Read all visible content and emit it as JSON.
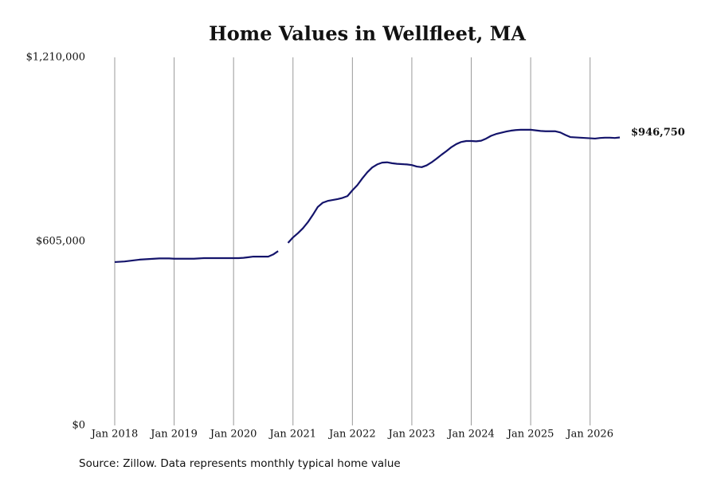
{
  "chart_data": {
    "type": "line",
    "title": "Home Values in Wellfleet, MA",
    "source": "Source: Zillow. Data represents monthly typical home value",
    "x": [
      "2018-01",
      "2018-02",
      "2018-03",
      "2018-04",
      "2018-05",
      "2018-06",
      "2018-07",
      "2018-08",
      "2018-09",
      "2018-10",
      "2018-11",
      "2018-12",
      "2019-01",
      "2019-02",
      "2019-03",
      "2019-04",
      "2019-05",
      "2019-06",
      "2019-07",
      "2019-08",
      "2019-09",
      "2019-10",
      "2019-11",
      "2019-12",
      "2020-01",
      "2020-02",
      "2020-03",
      "2020-04",
      "2020-05",
      "2020-06",
      "2020-07",
      "2020-08",
      "2020-09",
      "2020-10",
      "2020-11",
      "2020-12",
      "2021-01",
      "2021-02",
      "2021-03",
      "2021-04",
      "2021-05",
      "2021-06",
      "2021-07",
      "2021-08",
      "2021-09",
      "2021-10",
      "2021-11",
      "2021-12",
      "2022-01",
      "2022-02",
      "2022-03",
      "2022-04",
      "2022-05",
      "2022-06",
      "2022-07",
      "2022-08",
      "2022-09",
      "2022-10",
      "2022-11",
      "2022-12",
      "2023-01",
      "2023-02",
      "2023-03",
      "2023-04",
      "2023-05",
      "2023-06",
      "2023-07",
      "2023-08",
      "2023-09",
      "2023-10",
      "2023-11",
      "2023-12",
      "2024-01",
      "2024-02",
      "2024-03",
      "2024-04",
      "2024-05",
      "2024-06",
      "2024-07",
      "2024-08",
      "2024-09",
      "2024-10",
      "2024-11",
      "2024-12",
      "2025-01",
      "2025-02",
      "2025-03",
      "2025-04",
      "2025-05",
      "2025-06",
      "2025-07",
      "2025-08",
      "2025-09",
      "2025-10",
      "2025-11",
      "2025-12",
      "2026-01",
      "2026-02",
      "2026-03",
      "2026-04",
      "2026-05",
      "2026-06",
      "2026-07"
    ],
    "series": [
      {
        "color": "#14146b",
        "values": [
          537000,
          538000,
          539000,
          541000,
          543000,
          545000,
          546000,
          547000,
          548000,
          549000,
          549000,
          549000,
          548000,
          548000,
          548000,
          548000,
          548000,
          549000,
          550000,
          550000,
          550000,
          550000,
          550000,
          550000,
          550000,
          550000,
          551000,
          553000,
          555000,
          555000,
          555000,
          555000,
          562000,
          573000,
          null,
          600000,
          618000,
          632000,
          648000,
          668000,
          692000,
          718000,
          732000,
          738000,
          741000,
          744000,
          748000,
          754000,
          773000,
          790000,
          812000,
          832000,
          848000,
          858000,
          864000,
          865000,
          862000,
          860000,
          859000,
          858000,
          856000,
          851000,
          849000,
          855000,
          865000,
          877000,
          890000,
          902000,
          915000,
          925000,
          932000,
          935000,
          935000,
          934000,
          936000,
          943000,
          952000,
          958000,
          962000,
          966000,
          969000,
          971000,
          972000,
          972000,
          972000,
          970000,
          968000,
          967000,
          967000,
          967000,
          963000,
          955000,
          948000,
          947000,
          946000,
          945000,
          944000,
          943000,
          945000,
          946000,
          946000,
          945000,
          946750
        ],
        "value_labels": [
          null,
          null,
          null,
          null,
          null,
          null,
          null,
          null,
          null,
          null,
          null,
          null,
          null,
          null,
          null,
          null,
          null,
          null,
          null,
          null,
          null,
          null,
          null,
          null,
          null,
          null,
          null,
          null,
          null,
          null,
          null,
          null,
          null,
          null,
          null,
          null,
          null,
          null,
          null,
          null,
          null,
          null,
          null,
          null,
          null,
          null,
          null,
          null,
          null,
          null,
          null,
          null,
          null,
          null,
          null,
          null,
          null,
          null,
          null,
          null,
          null,
          null,
          null,
          null,
          null,
          null,
          null,
          null,
          null,
          null,
          null,
          null,
          null,
          null,
          null,
          null,
          null,
          null,
          null,
          null,
          null,
          null,
          null,
          null,
          null,
          null,
          null,
          null,
          null,
          null,
          null,
          null,
          null,
          null,
          null,
          null,
          null,
          null,
          null,
          null,
          null,
          null,
          "$946,750"
        ]
      }
    ],
    "xlim": [
      "2018-01",
      "2026-07"
    ],
    "xticks": [
      {
        "value": "2018-01",
        "label": "Jan 2018"
      },
      {
        "value": "2019-01",
        "label": "Jan 2019"
      },
      {
        "value": "2020-01",
        "label": "Jan 2020"
      },
      {
        "value": "2021-01",
        "label": "Jan 2021"
      },
      {
        "value": "2022-01",
        "label": "Jan 2022"
      },
      {
        "value": "2023-01",
        "label": "Jan 2023"
      },
      {
        "value": "2024-01",
        "label": "Jan 2024"
      },
      {
        "value": "2025-01",
        "label": "Jan 2025"
      },
      {
        "value": "2026-01",
        "label": "Jan 2026"
      }
    ],
    "ylim": [
      0,
      1210000
    ],
    "yticks": [
      {
        "value": 0,
        "label": "$0"
      },
      {
        "value": 605000,
        "label": "$605,000"
      },
      {
        "value": 1210000,
        "label": "$1,210,000"
      }
    ],
    "grid": "x"
  }
}
